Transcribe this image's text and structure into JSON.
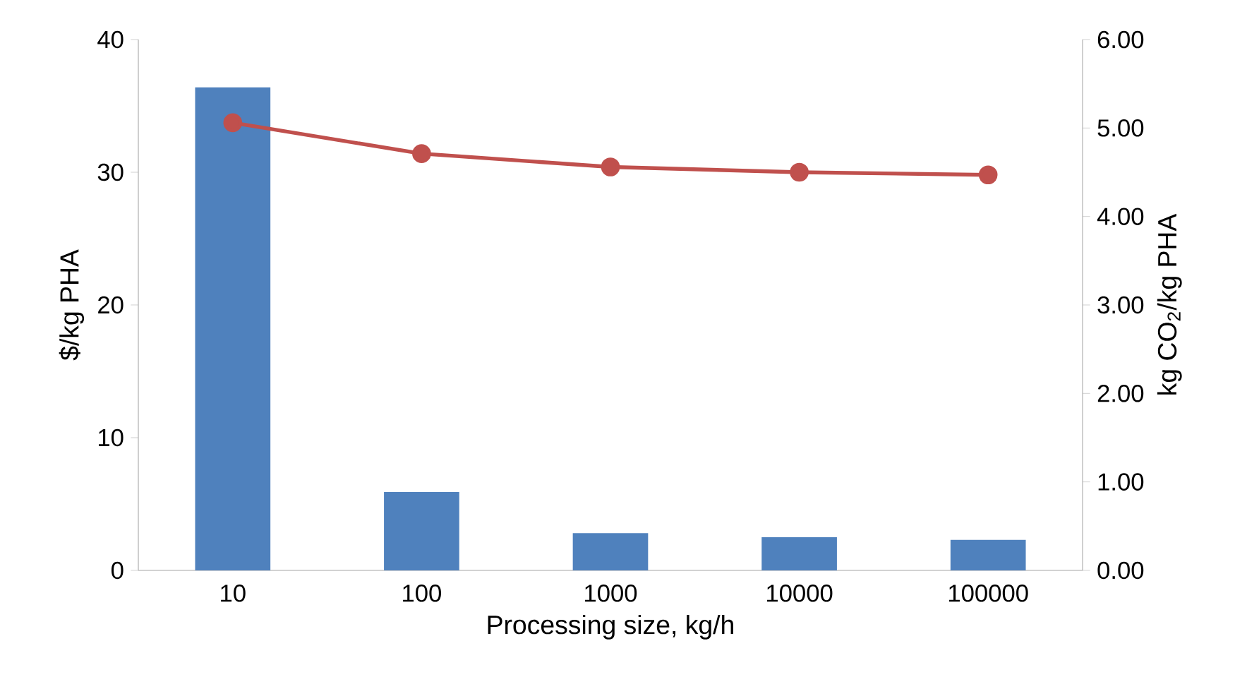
{
  "chart_data": {
    "type": "bar",
    "xlabel": "Processing size, kg/h",
    "ylabel": "$/kg PHA",
    "y2label": "kg CO$_{2}$/kg PHA",
    "categories": [
      "10",
      "100",
      "1000",
      "10000",
      "100000"
    ],
    "series": [
      {
        "color": "#4f81bd",
        "values": [
          36.4,
          5.9,
          2.8,
          2.5,
          2.3
        ]
      },
      {
        "type": "line",
        "axis": "y2",
        "color": "#c0504d",
        "marker": "circle",
        "values": [
          5.06,
          4.71,
          4.56,
          4.5,
          4.47
        ]
      }
    ],
    "ylim": [
      0,
      40
    ],
    "yticks": [
      0,
      10,
      20,
      30,
      40
    ],
    "y2lim": [
      0,
      6
    ],
    "y2ticks": [
      {
        "value": 0,
        "label": "0.00"
      },
      {
        "value": 1,
        "label": "1.00"
      },
      {
        "value": 2,
        "label": "2.00"
      },
      {
        "value": 3,
        "label": "3.00"
      },
      {
        "value": 4,
        "label": "4.00"
      },
      {
        "value": 5,
        "label": "5.00"
      },
      {
        "value": 6,
        "label": "6.00"
      }
    ],
    "grid": false
  }
}
